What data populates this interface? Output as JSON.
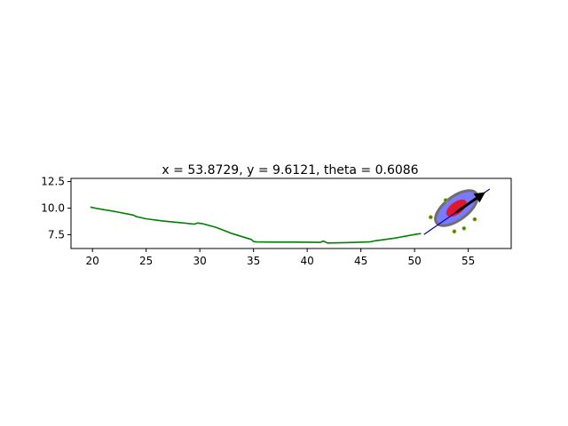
{
  "chart_data": {
    "type": "line",
    "title": "x = 53.8729, y = 9.6121, theta = 0.6086",
    "xlabel": "",
    "ylabel": "",
    "xlim": [
      18,
      59
    ],
    "ylim": [
      6.2,
      12.8
    ],
    "xticks": [
      20,
      25,
      30,
      35,
      40,
      45,
      50,
      55
    ],
    "yticks": [
      7.5,
      10.0,
      12.5
    ],
    "xtick_labels": [
      "20",
      "25",
      "30",
      "35",
      "40",
      "45",
      "50",
      "55"
    ],
    "ytick_labels": [
      "7.5",
      "10.0",
      "12.5"
    ],
    "grid": false,
    "series": [
      {
        "color": "#008000",
        "x": [
          19.8,
          20.5,
          22.0,
          23.8,
          24.1,
          25.0,
          26.5,
          28.0,
          29.5,
          29.8,
          30.2,
          31.5,
          33.0,
          34.8,
          35.0,
          35.3,
          37.0,
          39.0,
          41.2,
          41.5,
          41.9,
          43.5,
          45.8,
          46.2,
          48.0,
          50.2,
          50.6
        ],
        "y": [
          10.1,
          9.95,
          9.7,
          9.35,
          9.2,
          9.0,
          8.8,
          8.65,
          8.5,
          8.6,
          8.55,
          8.2,
          7.6,
          7.05,
          6.85,
          6.82,
          6.8,
          6.8,
          6.78,
          6.9,
          6.72,
          6.75,
          6.82,
          6.9,
          7.15,
          7.55,
          7.6
        ]
      }
    ],
    "pose_estimate": {
      "x": 53.8729,
      "y": 9.6121,
      "theta": 0.6086,
      "line_color": "#0000aa",
      "arrow_color": "#000000"
    },
    "uncertainty_ellipses": [
      {
        "fill": "#7a7aff",
        "edge": "#6e6e6e",
        "cx": 53.9,
        "cy": 10.0,
        "semi_major": 4.2,
        "semi_minor": 2.0,
        "angle_deg": 37
      },
      {
        "fill": "#e0182d",
        "edge": "#e0182d",
        "cx": 53.9,
        "cy": 10.0,
        "semi_major": 1.95,
        "semi_minor": 0.95,
        "angle_deg": 37
      }
    ],
    "particles": {
      "color": "#228b22",
      "points": [
        [
          51.5,
          9.15
        ],
        [
          52.9,
          10.75
        ],
        [
          53.7,
          7.8
        ],
        [
          54.6,
          8.1
        ],
        [
          55.6,
          8.95
        ]
      ]
    }
  }
}
